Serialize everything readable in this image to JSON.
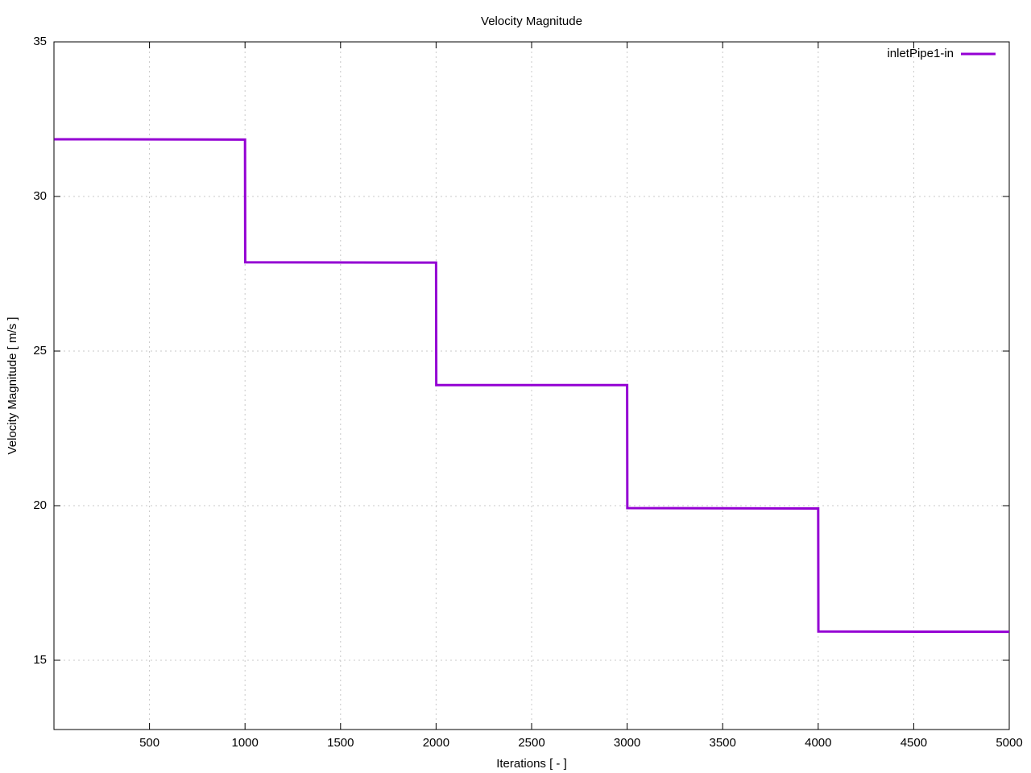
{
  "chart_data": {
    "type": "line",
    "title": "Velocity Magnitude",
    "xlabel": "Iterations [ - ]",
    "ylabel": "Velocity Magnitude [ m/s ]",
    "x": [
      1,
      1000,
      1001,
      2000,
      2001,
      3000,
      3001,
      4000,
      4001,
      5000
    ],
    "series": [
      {
        "name": "inletPipe1-in",
        "color": "#9400d3",
        "values": [
          31.85,
          31.84,
          27.87,
          27.86,
          23.9,
          23.9,
          19.92,
          19.91,
          15.93,
          15.92
        ]
      }
    ],
    "xlim": [
      0,
      5000
    ],
    "xticks": [
      500,
      1000,
      1500,
      2000,
      2500,
      3000,
      3500,
      4000,
      4500,
      5000
    ],
    "ylim": [
      12.76,
      35
    ],
    "yticks": [
      15,
      20,
      25,
      30,
      35
    ],
    "grid": true,
    "legend": "top-right"
  }
}
